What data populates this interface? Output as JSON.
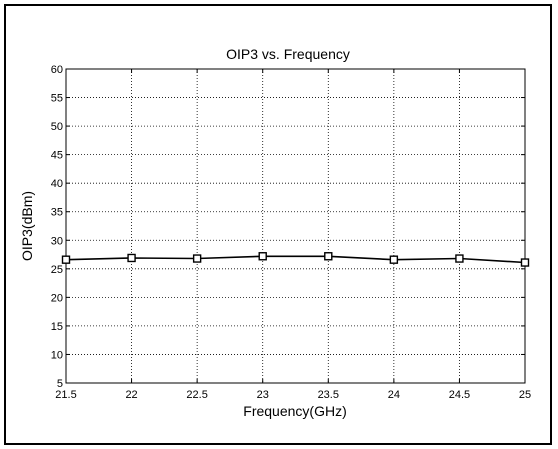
{
  "chart_data": {
    "type": "line",
    "title": "OIP3 vs. Frequency",
    "xlabel": "Frequency(GHz)",
    "ylabel": "OIP3(dBm)",
    "xlim": [
      21.5,
      25
    ],
    "ylim": [
      5,
      60
    ],
    "xticks": [
      21.5,
      22,
      22.5,
      23,
      23.5,
      24,
      24.5,
      25
    ],
    "yticks": [
      5,
      10,
      15,
      20,
      25,
      30,
      35,
      40,
      45,
      50,
      55,
      60
    ],
    "xtick_labels": [
      "21.5",
      "22",
      "22.5",
      "23",
      "23.5",
      "24",
      "24.5",
      "25"
    ],
    "ytick_labels": [
      "5",
      "10",
      "15",
      "20",
      "25",
      "30",
      "35",
      "40",
      "45",
      "50",
      "55",
      "60"
    ],
    "grid": true,
    "marker": "square",
    "series": [
      {
        "x": [
          21.5,
          22,
          22.5,
          23,
          23.5,
          24,
          24.5,
          25
        ],
        "values": [
          26.6,
          26.9,
          26.8,
          27.2,
          27.2,
          26.6,
          26.8,
          26.1
        ]
      }
    ],
    "colors": {
      "line": "#000000",
      "grid": "#000000",
      "background": "#ffffff"
    }
  }
}
